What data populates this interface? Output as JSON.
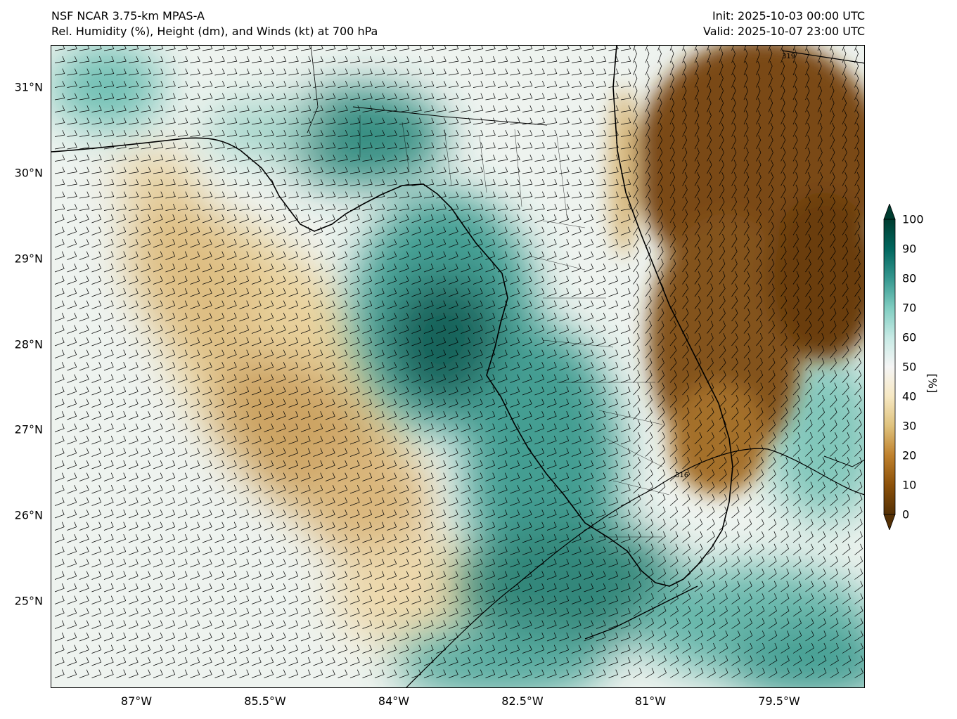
{
  "header": {
    "model": "NSF NCAR 3.75-km MPAS-A",
    "field": "Rel. Humidity (%), Height (dm), and Winds (kt) at 700 hPa",
    "init": "Init: 2025-10-03 00:00 UTC",
    "valid": "Valid: 2025-10-07 23:00 UTC"
  },
  "map": {
    "lon_range": [
      -88.0,
      -78.5
    ],
    "lat_range": [
      24.0,
      31.5
    ],
    "lat_ticks": [
      "31°N",
      "30°N",
      "29°N",
      "28°N",
      "27°N",
      "26°N",
      "25°N"
    ],
    "lat_values": [
      31,
      30,
      29,
      28,
      27,
      26,
      25
    ],
    "lon_ticks": [
      "87°W",
      "85.5°W",
      "84°W",
      "82.5°W",
      "81°W",
      "79.5°W"
    ],
    "lon_values": [
      -87,
      -85.5,
      -84,
      -82.5,
      -81,
      -79.5
    ],
    "contour_labels": [
      "319",
      "316"
    ],
    "colors": {
      "dry": "#6b3a07",
      "moist": "#01463c",
      "neutral": "#f4f1ea",
      "coast": "#000000"
    }
  },
  "colorbar": {
    "unit": "[%]",
    "ticks": [
      "100",
      "90",
      "80",
      "70",
      "60",
      "50",
      "40",
      "30",
      "20",
      "10",
      "0"
    ],
    "stops": [
      "#543005",
      "#8c510a",
      "#bf812d",
      "#dfc27d",
      "#f6e8c3",
      "#f5f5f5",
      "#c7eae5",
      "#80cdc1",
      "#35978f",
      "#01665e",
      "#003c30"
    ]
  }
}
